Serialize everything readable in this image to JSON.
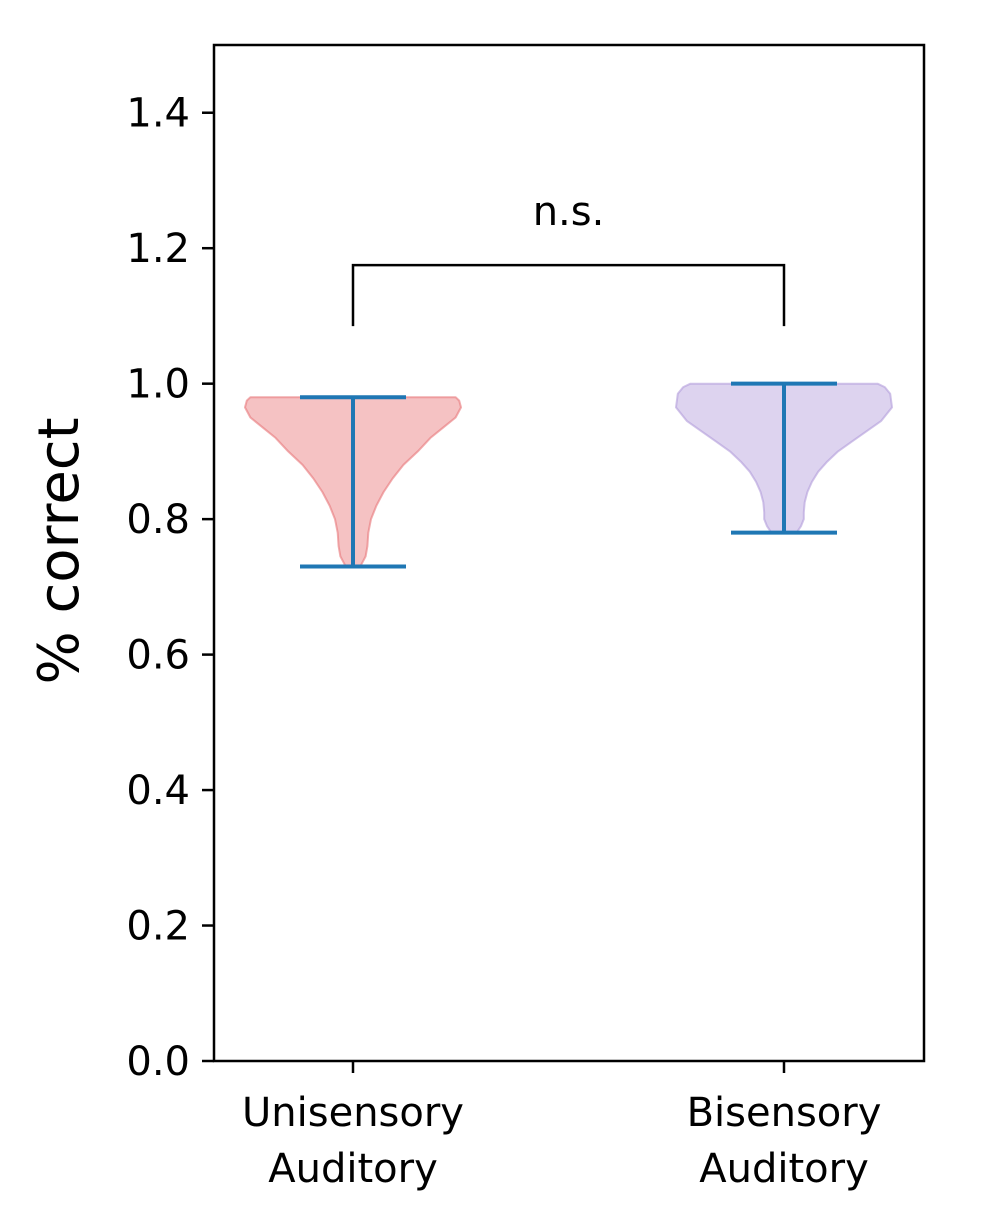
{
  "chart_data": {
    "type": "violin",
    "title": "",
    "xlabel": "",
    "ylabel": "% correct",
    "ylim": [
      0,
      1.5
    ],
    "yticks": [
      "0.0",
      "0.2",
      "0.4",
      "0.6",
      "0.8",
      "1.0",
      "1.2",
      "1.4"
    ],
    "categories": [
      {
        "line1": "Unisensory",
        "line2": "Auditory"
      },
      {
        "line1": "Bisensory",
        "line2": "Auditory"
      }
    ],
    "series": [
      {
        "category": "Unisensory Auditory",
        "min": 0.73,
        "max": 0.98,
        "color": "#e8777a",
        "density_profile": [
          [
            0.98,
            0.57
          ],
          [
            0.975,
            0.59
          ],
          [
            0.965,
            0.6
          ],
          [
            0.95,
            0.57
          ],
          [
            0.935,
            0.5
          ],
          [
            0.92,
            0.43
          ],
          [
            0.9,
            0.36
          ],
          [
            0.88,
            0.28
          ],
          [
            0.86,
            0.22
          ],
          [
            0.84,
            0.17
          ],
          [
            0.82,
            0.13
          ],
          [
            0.8,
            0.1
          ],
          [
            0.78,
            0.085
          ],
          [
            0.76,
            0.08
          ],
          [
            0.745,
            0.07
          ],
          [
            0.735,
            0.05
          ],
          [
            0.73,
            0.04
          ]
        ]
      },
      {
        "category": "Bisensory Auditory",
        "min": 0.78,
        "max": 1.0,
        "color": "#b39ddb",
        "density_profile": [
          [
            1.0,
            0.52
          ],
          [
            0.995,
            0.56
          ],
          [
            0.985,
            0.59
          ],
          [
            0.965,
            0.6
          ],
          [
            0.945,
            0.54
          ],
          [
            0.93,
            0.46
          ],
          [
            0.915,
            0.38
          ],
          [
            0.9,
            0.3
          ],
          [
            0.885,
            0.24
          ],
          [
            0.87,
            0.19
          ],
          [
            0.855,
            0.155
          ],
          [
            0.84,
            0.13
          ],
          [
            0.825,
            0.115
          ],
          [
            0.81,
            0.11
          ],
          [
            0.8,
            0.11
          ],
          [
            0.79,
            0.095
          ],
          [
            0.78,
            0.07
          ]
        ]
      }
    ],
    "whisker_color": "#1f77b4",
    "significance": {
      "label": "n.s.",
      "between": [
        0,
        1
      ],
      "y_bar": 1.175,
      "y_legs_bottom": 1.085
    }
  }
}
